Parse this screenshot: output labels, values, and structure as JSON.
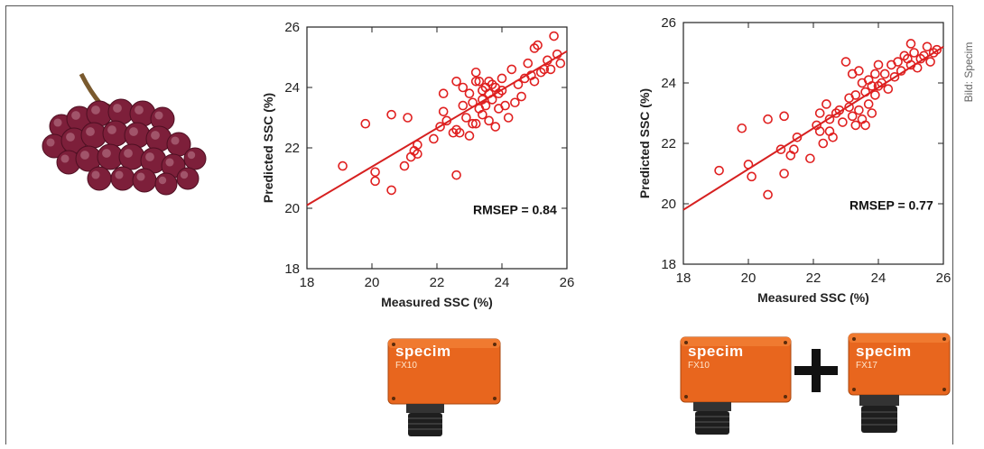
{
  "credit": "Bild: Specim",
  "colors": {
    "marker": "#e02020",
    "fit": "#d62020",
    "axis": "#222222",
    "camera": "#e8661e"
  },
  "cameras": [
    {
      "brand": "specim",
      "model": "FX10"
    },
    {
      "brand": "specim",
      "model": "FX10"
    },
    {
      "brand": "specim",
      "model": "FX17"
    }
  ],
  "icons": {
    "grapes": "grapes-image",
    "plus": "plus-icon",
    "lens": "camera-lens-icon"
  },
  "chart_data": [
    {
      "type": "scatter",
      "xlabel": "Measured SSC (%)",
      "ylabel": "Predicted SSC (%)",
      "xlim": [
        18,
        26
      ],
      "ylim": [
        18,
        26
      ],
      "xticks": [
        "18",
        "20",
        "22",
        "24",
        "26"
      ],
      "yticks": [
        "18",
        "20",
        "22",
        "24",
        "26"
      ],
      "annotation": "RMSEP = 0.84",
      "fit": {
        "x": [
          18,
          26
        ],
        "y": [
          20.1,
          25.2
        ]
      },
      "points": {
        "x": [
          19.1,
          19.8,
          20.1,
          20.1,
          20.6,
          20.6,
          21.0,
          21.1,
          21.2,
          21.3,
          21.4,
          21.4,
          21.9,
          22.1,
          22.2,
          22.2,
          22.3,
          22.5,
          22.6,
          22.6,
          22.6,
          22.7,
          22.8,
          22.8,
          22.9,
          23.0,
          23.0,
          23.1,
          23.1,
          23.2,
          23.2,
          23.2,
          23.3,
          23.3,
          23.4,
          23.4,
          23.4,
          23.5,
          23.5,
          23.6,
          23.6,
          23.6,
          23.7,
          23.7,
          23.8,
          23.8,
          23.9,
          23.9,
          24.0,
          24.0,
          24.1,
          24.2,
          24.3,
          24.4,
          24.5,
          24.6,
          24.7,
          24.8,
          24.9,
          25.0,
          25.0,
          25.1,
          25.2,
          25.3,
          25.4,
          25.5,
          25.6,
          25.7,
          25.8
        ],
        "y": [
          21.4,
          22.8,
          20.9,
          21.2,
          23.1,
          20.6,
          21.4,
          23.0,
          21.7,
          21.9,
          22.1,
          21.8,
          22.3,
          22.7,
          23.2,
          23.8,
          22.9,
          22.5,
          24.2,
          22.6,
          21.1,
          22.5,
          24.0,
          23.4,
          23.0,
          22.4,
          23.8,
          22.8,
          23.5,
          24.5,
          22.8,
          24.2,
          23.3,
          24.2,
          23.1,
          23.9,
          23.6,
          24.0,
          23.4,
          24.2,
          23.8,
          22.9,
          24.1,
          23.6,
          24.0,
          22.7,
          23.8,
          23.3,
          24.3,
          23.9,
          23.4,
          23.0,
          24.6,
          23.5,
          24.1,
          23.7,
          24.3,
          24.8,
          24.4,
          25.3,
          24.2,
          25.4,
          24.5,
          24.6,
          24.9,
          24.6,
          25.7,
          25.1,
          24.8
        ]
      }
    },
    {
      "type": "scatter",
      "xlabel": "Measured SSC (%)",
      "ylabel": "Predicted SSC (%)",
      "xlim": [
        18,
        26
      ],
      "ylim": [
        18,
        26
      ],
      "xticks": [
        "18",
        "20",
        "22",
        "24",
        "26"
      ],
      "yticks": [
        "18",
        "20",
        "22",
        "24",
        "26"
      ],
      "annotation": "RMSEP = 0.77",
      "fit": {
        "x": [
          18,
          26
        ],
        "y": [
          19.8,
          25.2
        ]
      },
      "points": {
        "x": [
          19.1,
          19.8,
          20.0,
          20.1,
          20.6,
          20.6,
          21.0,
          21.1,
          21.1,
          21.3,
          21.4,
          21.5,
          21.9,
          22.1,
          22.2,
          22.2,
          22.3,
          22.4,
          22.5,
          22.5,
          22.6,
          22.7,
          22.8,
          22.9,
          23.0,
          23.1,
          23.1,
          23.2,
          23.2,
          23.3,
          23.3,
          23.4,
          23.4,
          23.5,
          23.5,
          23.6,
          23.6,
          23.7,
          23.7,
          23.8,
          23.8,
          23.9,
          23.9,
          24.0,
          24.0,
          24.1,
          24.2,
          24.3,
          24.4,
          24.5,
          24.6,
          24.7,
          24.8,
          24.9,
          25.0,
          25.0,
          25.1,
          25.2,
          25.3,
          25.4,
          25.5,
          25.6,
          25.7,
          25.8
        ],
        "y": [
          21.1,
          22.5,
          21.3,
          20.9,
          22.8,
          20.3,
          21.8,
          21.0,
          22.9,
          21.6,
          21.8,
          22.2,
          21.5,
          22.6,
          23.0,
          22.4,
          22.0,
          23.3,
          22.8,
          22.4,
          22.2,
          23.0,
          23.1,
          22.7,
          24.7,
          23.5,
          23.2,
          22.9,
          24.3,
          23.6,
          22.6,
          24.4,
          23.1,
          22.8,
          24.0,
          23.7,
          22.6,
          24.1,
          23.3,
          23.9,
          23.0,
          24.3,
          23.6,
          23.9,
          24.6,
          24.0,
          24.3,
          23.8,
          24.6,
          24.2,
          24.7,
          24.4,
          24.9,
          24.8,
          25.3,
          24.6,
          25.0,
          24.5,
          24.8,
          24.9,
          25.2,
          24.7,
          25.0,
          25.1
        ]
      }
    }
  ]
}
